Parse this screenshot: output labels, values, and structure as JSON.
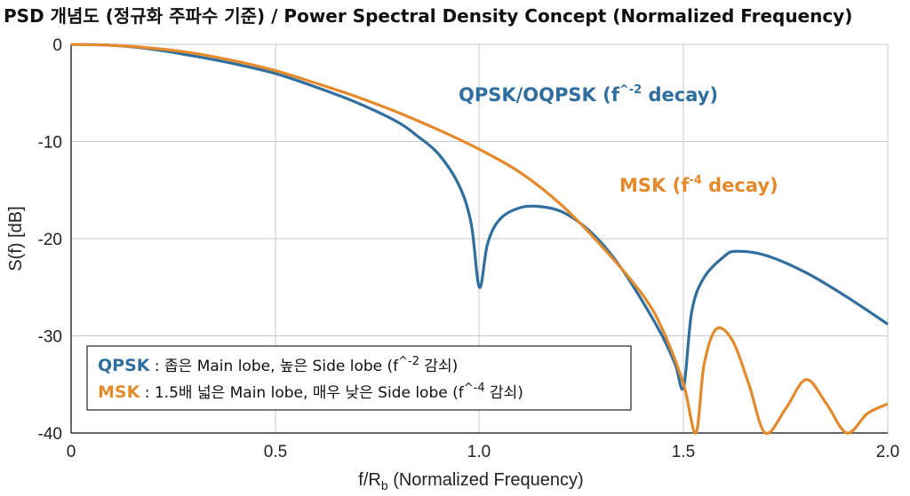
{
  "chart_data": {
    "type": "line",
    "title": "PSD 개념도 (정규화 주파수 기준) / Power Spectral Density Concept (Normalized Frequency)",
    "xlabel": {
      "main": "f/R",
      "sub": "b",
      "rest": " (Normalized Frequency)"
    },
    "ylabel": "S(f) [dB]",
    "xlim": [
      0,
      2.0
    ],
    "ylim": [
      -40,
      0
    ],
    "x_ticks": [
      0,
      0.5,
      1.0,
      1.5,
      2.0
    ],
    "x_tick_labels": [
      "0",
      "0.5",
      "1.0",
      "1.5",
      "2.0"
    ],
    "y_ticks": [
      0,
      -10,
      -20,
      -30,
      -40
    ],
    "y_tick_labels": [
      "0",
      "-10",
      "-20",
      "-30",
      "-40"
    ],
    "grid": true,
    "series": [
      {
        "name": "QPSK/OQPSK",
        "color": "#2f6e9e",
        "x": [
          0,
          0.1,
          0.2,
          0.3,
          0.4,
          0.5,
          0.6,
          0.7,
          0.8,
          0.85,
          0.9,
          0.95,
          0.98,
          1.0,
          1.02,
          1.05,
          1.1,
          1.15,
          1.2,
          1.25,
          1.3,
          1.35,
          1.4,
          1.45,
          1.48,
          1.5,
          1.52,
          1.55,
          1.6,
          1.63,
          1.7,
          1.8,
          1.9,
          2.0
        ],
        "y": [
          0,
          -0.1,
          -0.5,
          -1.2,
          -2.0,
          -3.0,
          -4.4,
          -6.0,
          -8.0,
          -9.5,
          -11.3,
          -14.5,
          -18.5,
          -25.0,
          -20.5,
          -18.0,
          -16.8,
          -16.7,
          -17.2,
          -18.5,
          -20.5,
          -23.2,
          -26.5,
          -30.2,
          -33.0,
          -35.3,
          -27.5,
          -24.0,
          -21.8,
          -21.3,
          -21.7,
          -23.5,
          -26.0,
          -28.8
        ]
      },
      {
        "name": "MSK",
        "color": "#e58a2b",
        "x": [
          0,
          0.1,
          0.2,
          0.3,
          0.4,
          0.5,
          0.6,
          0.7,
          0.8,
          0.9,
          1.0,
          1.1,
          1.2,
          1.3,
          1.4,
          1.45,
          1.5,
          1.53,
          1.55,
          1.58,
          1.62,
          1.66,
          1.7,
          1.75,
          1.8,
          1.85,
          1.9,
          1.95,
          2.0
        ],
        "y": [
          0,
          -0.1,
          -0.4,
          -0.9,
          -1.7,
          -2.7,
          -4.0,
          -5.4,
          -7.0,
          -8.8,
          -10.8,
          -13.2,
          -16.5,
          -20.8,
          -25.8,
          -29.5,
          -35.0,
          -40.0,
          -33.0,
          -29.3,
          -30.5,
          -35.0,
          -40.0,
          -37.5,
          -34.5,
          -37.0,
          -40.0,
          -38.0,
          -37.0
        ]
      }
    ],
    "annotations": [
      {
        "series": "QPSK/OQPSK",
        "text": "QPSK/OQPSK (f",
        "sup": "^-2",
        "after": " decay)"
      },
      {
        "series": "MSK",
        "text": "MSK (f",
        "sup": "-4",
        "after": " decay)"
      }
    ],
    "legend": {
      "placement": "bottom-left",
      "rows": [
        {
          "key": "QPSK",
          "pre": " : 좁은 Main lobe, 높은 Side lobe (f",
          "sup": "^-2",
          "post": " 감쇠)"
        },
        {
          "key": "MSK",
          "pre": " : 1.5배 넓은 Main lobe, 매우 낮은 Side lobe (f",
          "sup": "^-4",
          "post": " 감쇠)"
        }
      ]
    }
  }
}
